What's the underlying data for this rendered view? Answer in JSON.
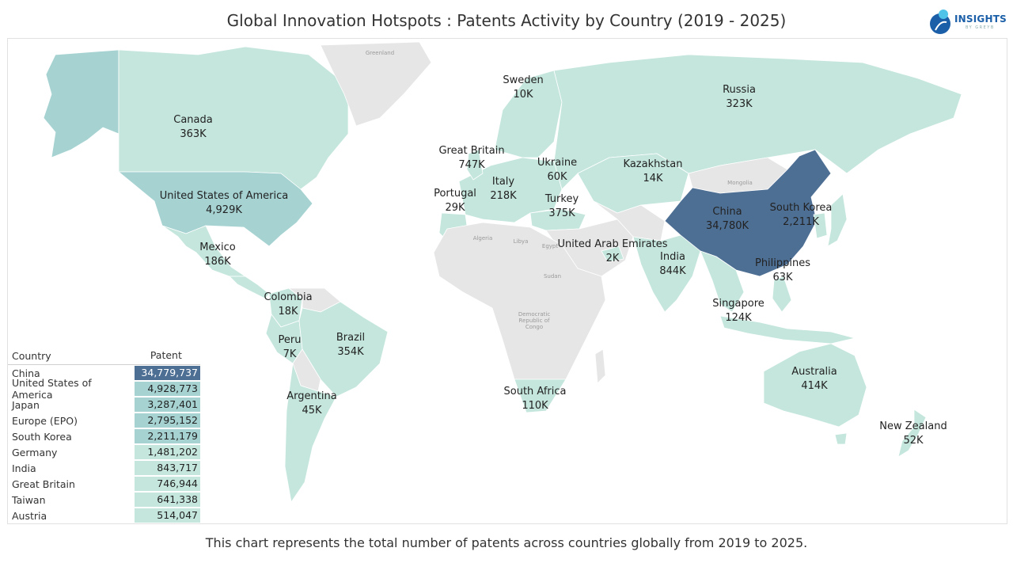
{
  "title": "Global Innovation Hotspots : Patents Activity by Country (2019 - 2025)",
  "caption": "This chart represents the total number of patents across countries globally from 2019 to 2025.",
  "logo": {
    "word": "INSIGHTS",
    "sub": "BY GREYB"
  },
  "colors": {
    "high": "#4e6f94",
    "mid": "#a6d2d2",
    "low": "#c4e6dc",
    "nodata": "#e6e6e6",
    "ocean": "#ffffff"
  },
  "map_labels": [
    {
      "id": "canada",
      "name": "Canada",
      "value": "363K"
    },
    {
      "id": "usa",
      "name": "United States of America",
      "value": "4,929K"
    },
    {
      "id": "mexico",
      "name": "Mexico",
      "value": "186K"
    },
    {
      "id": "colombia",
      "name": "Colombia",
      "value": "18K"
    },
    {
      "id": "peru",
      "name": "Peru",
      "value": "7K"
    },
    {
      "id": "brazil",
      "name": "Brazil",
      "value": "354K"
    },
    {
      "id": "argentina",
      "name": "Argentina",
      "value": "45K"
    },
    {
      "id": "sweden",
      "name": "Sweden",
      "value": "10K"
    },
    {
      "id": "great-britain",
      "name": "Great Britain",
      "value": "747K"
    },
    {
      "id": "ukraine",
      "name": "Ukraine",
      "value": "60K"
    },
    {
      "id": "italy",
      "name": "Italy",
      "value": "218K"
    },
    {
      "id": "portugal",
      "name": "Portugal",
      "value": "29K"
    },
    {
      "id": "turkey",
      "name": "Turkey",
      "value": "375K"
    },
    {
      "id": "russia",
      "name": "Russia",
      "value": "323K"
    },
    {
      "id": "kazakhstan",
      "name": "Kazakhstan",
      "value": "14K"
    },
    {
      "id": "china",
      "name": "China",
      "value": "34,780K"
    },
    {
      "id": "south-korea",
      "name": "South Korea",
      "value": "2,211K"
    },
    {
      "id": "uae",
      "name": "United Arab Emirates",
      "value": "2K"
    },
    {
      "id": "india",
      "name": "India",
      "value": "844K"
    },
    {
      "id": "philippines",
      "name": "Philippines",
      "value": "63K"
    },
    {
      "id": "singapore",
      "name": "Singapore",
      "value": "124K"
    },
    {
      "id": "south-africa",
      "name": "South Africa",
      "value": "110K"
    },
    {
      "id": "australia",
      "name": "Australia",
      "value": "414K"
    },
    {
      "id": "new-zealand",
      "name": "New Zealand",
      "value": "52K"
    }
  ],
  "background_labels": [
    "Greenland",
    "Algeria",
    "Libya",
    "Egypt",
    "Sudan",
    "Democratic Republic of Congo",
    "Mongolia"
  ],
  "table": {
    "header_country": "Country",
    "header_count": "Patent Count",
    "rows": [
      {
        "country": "China",
        "count": "34,779,737"
      },
      {
        "country": "United States of America",
        "count": "4,928,773"
      },
      {
        "country": "Japan",
        "count": "3,287,401"
      },
      {
        "country": "Europe (EPO)",
        "count": "2,795,152"
      },
      {
        "country": "South Korea",
        "count": "2,211,179"
      },
      {
        "country": "Germany",
        "count": "1,481,202"
      },
      {
        "country": "India",
        "count": "843,717"
      },
      {
        "country": "Great Britain",
        "count": "746,944"
      },
      {
        "country": "Taiwan",
        "count": "641,338"
      },
      {
        "country": "Austria",
        "count": "514,047"
      }
    ]
  },
  "chart_data": {
    "type": "table",
    "title": "Global Innovation Hotspots : Patents Activity by Country (2019 - 2025)",
    "map_values": {
      "Canada": "363K",
      "United States of America": "4,929K",
      "Mexico": "186K",
      "Colombia": "18K",
      "Peru": "7K",
      "Brazil": "354K",
      "Argentina": "45K",
      "Sweden": "10K",
      "Great Britain": "747K",
      "Ukraine": "60K",
      "Italy": "218K",
      "Portugal": "29K",
      "Turkey": "375K",
      "Russia": "323K",
      "Kazakhstan": "14K",
      "China": "34,780K",
      "South Korea": "2,211K",
      "United Arab Emirates": "2K",
      "India": "844K",
      "Philippines": "63K",
      "Singapore": "124K",
      "South Africa": "110K",
      "Australia": "414K",
      "New Zealand": "52K"
    },
    "columns": [
      "Country",
      "Patent Count"
    ],
    "rows": [
      [
        "China",
        34779737
      ],
      [
        "United States of America",
        4928773
      ],
      [
        "Japan",
        3287401
      ],
      [
        "Europe (EPO)",
        2795152
      ],
      [
        "South Korea",
        2211179
      ],
      [
        "Germany",
        1481202
      ],
      [
        "India",
        843717
      ],
      [
        "Great Britain",
        746944
      ],
      [
        "Taiwan",
        641338
      ],
      [
        "Austria",
        514047
      ]
    ]
  }
}
